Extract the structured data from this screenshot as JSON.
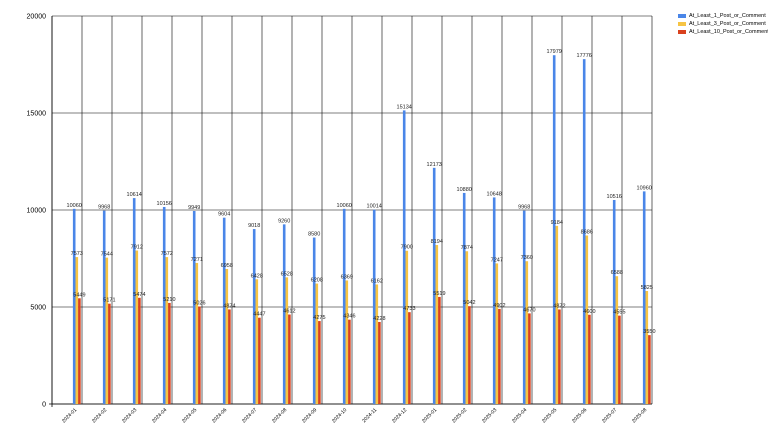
{
  "chart_data": {
    "type": "bar",
    "title": "",
    "xlabel": "",
    "ylabel": "",
    "ylim": [
      0,
      20000
    ],
    "yticks": [
      "0",
      "5000",
      "10000",
      "15000",
      "20000"
    ],
    "grid": true,
    "legend_position": "top-right",
    "categories": [
      "2024-01",
      "2024-02",
      "2024-03",
      "2024-04",
      "2024-05",
      "2024-06",
      "2024-07",
      "2024-08",
      "2024-09",
      "2024-10",
      "2024-11",
      "2024-12",
      "2025-01",
      "2025-02",
      "2025-03",
      "2025-04",
      "2025-05",
      "2025-06",
      "2025-07",
      "2025-08"
    ],
    "series": [
      {
        "name": "At_Least_1_Post_or_Comment",
        "color": "#4a86e8",
        "values": [
          10060,
          9968,
          10614,
          10156,
          9949,
          9604,
          9018,
          9260,
          8580,
          10060,
          10014,
          15134,
          12173,
          10880,
          10648,
          9968,
          17979,
          17776,
          10516,
          10960
        ]
      },
      {
        "name": "At_Least_3_Post_or_Comment",
        "color": "#f6c444",
        "values": [
          7573,
          7544,
          7912,
          7572,
          7271,
          6958,
          6428,
          6528,
          6208,
          6369,
          6162,
          7900,
          8194,
          7874,
          7247,
          7360,
          9184,
          8686,
          6588,
          5825
        ]
      },
      {
        "name": "At_Least_10_Post_or_Comment",
        "color": "#d9411e",
        "values": [
          5449,
          5171,
          5474,
          5210,
          5026,
          4874,
          4447,
          4612,
          4275,
          4346,
          4228,
          4733,
          5519,
          5042,
          4902,
          4670,
          4872,
          4600,
          4555,
          3550
        ]
      }
    ]
  }
}
